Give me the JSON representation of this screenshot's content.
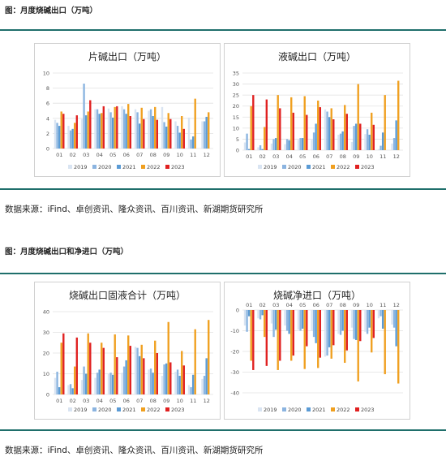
{
  "sections": [
    {
      "figure_title": "图：月度烧碱出口（万吨）",
      "source": "数据来源：iFind、卓创资讯、隆众资讯、百川资讯、新湖期货研究所"
    },
    {
      "figure_title": "图：月度烧碱出口和净进口（万吨）",
      "source": "数据来源：iFind、卓创资讯、隆众资讯、百川资讯、新湖期货研究所"
    }
  ],
  "series_colors": [
    "#d9e4f2",
    "#8bb4e0",
    "#5b9bd5",
    "#f0a020",
    "#e02020"
  ],
  "chart_data": [
    {
      "type": "bar",
      "title": "片碱出口（万吨）",
      "categories": [
        "01",
        "02",
        "03",
        "04",
        "05",
        "06",
        "07",
        "08",
        "09",
        "10",
        "11",
        "12"
      ],
      "ylim": [
        0,
        10
      ],
      "yticks": [
        0,
        2,
        4,
        6,
        8,
        10
      ],
      "grid": true,
      "legend": "bottom",
      "series": [
        {
          "name": "2019",
          "values": [
            3.8,
            3.0,
            3.9,
            5.2,
            5.3,
            5.6,
            5.2,
            5.0,
            5.5,
            3.6,
            4.1,
            3.6
          ]
        },
        {
          "name": "2020",
          "values": [
            3.4,
            2.4,
            8.6,
            5.2,
            4.8,
            5.2,
            4.8,
            5.2,
            3.5,
            3.0,
            1.2,
            3.6
          ]
        },
        {
          "name": "2021",
          "values": [
            3.0,
            2.6,
            4.4,
            4.6,
            4.1,
            4.6,
            3.3,
            4.3,
            2.9,
            2.1,
            1.6,
            4.2
          ]
        },
        {
          "name": "2022",
          "values": [
            4.9,
            3.4,
            4.9,
            4.7,
            5.5,
            5.9,
            5.4,
            5.5,
            4.7,
            4.3,
            6.6,
            4.8
          ]
        },
        {
          "name": "2023",
          "values": [
            4.6,
            4.4,
            6.4,
            5.6,
            5.6,
            4.3,
            3.9,
            3.8,
            3.9,
            2.6,
            null,
            null
          ]
        }
      ]
    },
    {
      "type": "bar",
      "title": "液碱出口（万吨）",
      "categories": [
        "01",
        "02",
        "03",
        "04",
        "05",
        "06",
        "07",
        "08",
        "09",
        "10",
        "11",
        "12"
      ],
      "ylim": [
        0,
        35
      ],
      "yticks": [
        0,
        5,
        10,
        15,
        20,
        25,
        30,
        35
      ],
      "grid": true,
      "legend": "bottom",
      "series": [
        {
          "name": "2019",
          "values": [
            3.5,
            1.3,
            3.0,
            2.7,
            4.7,
            4.7,
            18.5,
            7.0,
            3.7,
            7.3,
            0.5,
            3.0
          ]
        },
        {
          "name": "2020",
          "values": [
            7.5,
            2.2,
            5.0,
            5.0,
            5.5,
            8.0,
            17.5,
            7.5,
            11.0,
            9.5,
            2.0,
            5.5
          ]
        },
        {
          "name": "2021",
          "values": [
            0.5,
            0.5,
            5.5,
            4.5,
            5.5,
            12.0,
            15.0,
            8.5,
            12.0,
            7.0,
            8.0,
            13.5
          ]
        },
        {
          "name": "2022",
          "values": [
            20.0,
            10.5,
            25.0,
            24.0,
            24.5,
            22.5,
            19.0,
            20.5,
            30.0,
            17.0,
            25.0,
            31.5
          ]
        },
        {
          "name": "2023",
          "values": [
            25.0,
            23.0,
            19.0,
            17.0,
            16.0,
            19.5,
            14.0,
            16.5,
            12.0,
            11.5,
            null,
            null
          ]
        }
      ]
    },
    {
      "type": "bar",
      "title": "烧碱出口固液合计（万吨）",
      "categories": [
        "01",
        "02",
        "03",
        "04",
        "05",
        "06",
        "07",
        "08",
        "09",
        "10",
        "11",
        "12"
      ],
      "ylim": [
        0,
        40
      ],
      "yticks": [
        0,
        10,
        20,
        30,
        40
      ],
      "grid": true,
      "legend": "bottom",
      "series": [
        {
          "name": "2019",
          "values": [
            8.0,
            4.5,
            7.0,
            8.0,
            10.0,
            10.5,
            23.0,
            12.0,
            9.0,
            11.0,
            4.5,
            7.5
          ]
        },
        {
          "name": "2020",
          "values": [
            11.0,
            5.0,
            13.5,
            10.5,
            10.5,
            13.5,
            22.5,
            12.5,
            14.5,
            12.0,
            3.5,
            9.0
          ]
        },
        {
          "name": "2021",
          "values": [
            3.5,
            3.0,
            10.0,
            12.0,
            9.5,
            16.5,
            18.5,
            10.5,
            15.0,
            9.0,
            9.5,
            17.5
          ]
        },
        {
          "name": "2022",
          "values": [
            25.0,
            13.5,
            29.5,
            25.0,
            29.0,
            28.5,
            24.0,
            26.0,
            35.0,
            21.0,
            31.5,
            36.0
          ]
        },
        {
          "name": "2023",
          "values": [
            29.5,
            27.5,
            25.0,
            22.5,
            18.0,
            23.5,
            17.5,
            20.0,
            15.5,
            14.0,
            null,
            null
          ]
        }
      ]
    },
    {
      "type": "bar",
      "title": "烧碱净进口（万吨）",
      "categories": [
        "01",
        "02",
        "03",
        "04",
        "05",
        "06",
        "07",
        "08",
        "09",
        "10",
        "11",
        "12"
      ],
      "ylim": [
        -40,
        0
      ],
      "yticks": [
        0,
        -10,
        -20,
        -30,
        -40
      ],
      "grid": true,
      "legend": "bottom",
      "series": [
        {
          "name": "2019",
          "values": [
            -7.5,
            -4.0,
            -6.5,
            -7.5,
            -9.5,
            -10.0,
            -22.5,
            -11.5,
            -8.5,
            -10.5,
            -4.0,
            -7.0
          ]
        },
        {
          "name": "2020",
          "values": [
            -10.5,
            -4.5,
            -13.0,
            -10.0,
            -10.0,
            -13.0,
            -22.0,
            -12.0,
            -14.0,
            -11.5,
            -3.0,
            -8.5
          ]
        },
        {
          "name": "2021",
          "values": [
            -3.0,
            -2.5,
            -9.5,
            -11.5,
            -9.0,
            -16.0,
            -18.0,
            -10.0,
            -14.5,
            -8.5,
            -9.0,
            -17.5
          ]
        },
        {
          "name": "2022",
          "values": [
            -24.5,
            -13.0,
            -29.0,
            -24.5,
            -28.5,
            -28.0,
            -23.5,
            -25.5,
            -34.5,
            -20.5,
            -31.0,
            -35.5
          ]
        },
        {
          "name": "2023",
          "values": [
            -29.0,
            -27.0,
            -24.5,
            -22.0,
            -17.5,
            -23.0,
            -17.0,
            -19.5,
            -15.0,
            -13.5,
            null,
            null
          ]
        }
      ]
    }
  ]
}
